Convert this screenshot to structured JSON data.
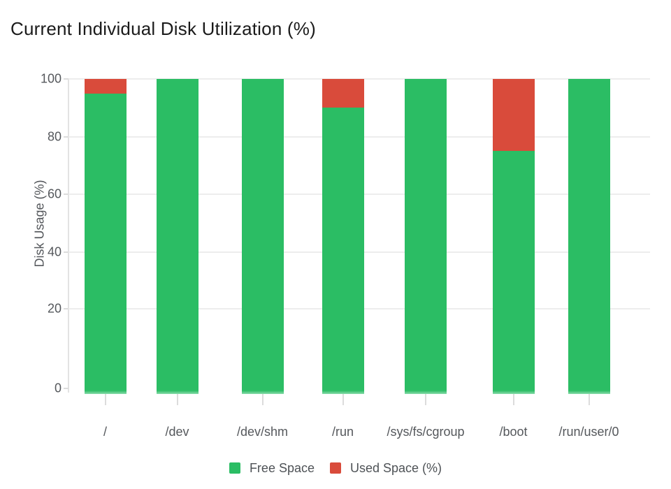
{
  "title": "Current Individual Disk Utilization (%)",
  "chart_data": {
    "type": "bar",
    "stacked": true,
    "title": "Current Individual Disk Utilization (%)",
    "categories": [
      "/",
      "/dev",
      "/dev/shm",
      "/run",
      "/sys/fs/cgroup",
      "/boot",
      "/run/user/0"
    ],
    "series": [
      {
        "name": "Free Space",
        "color": "#2bbd64",
        "values": [
          95,
          100,
          100,
          90,
          100,
          75,
          100
        ]
      },
      {
        "name": "Used Space (%)",
        "color": "#d94b3b",
        "values": [
          5,
          0,
          0,
          10,
          0,
          25,
          0
        ]
      }
    ],
    "xlabel": "",
    "ylabel": "Disk Usage (%)",
    "ylim": [
      0,
      100
    ],
    "yticks": [
      0,
      20,
      40,
      60,
      80,
      100
    ],
    "grid": true,
    "legend_position": "bottom"
  },
  "colors": {
    "free_space": "#2bbd64",
    "used_space": "#d94b3b",
    "axis_text": "#55585c",
    "title_text": "#1b1b1b",
    "gridline": "#ededed"
  }
}
